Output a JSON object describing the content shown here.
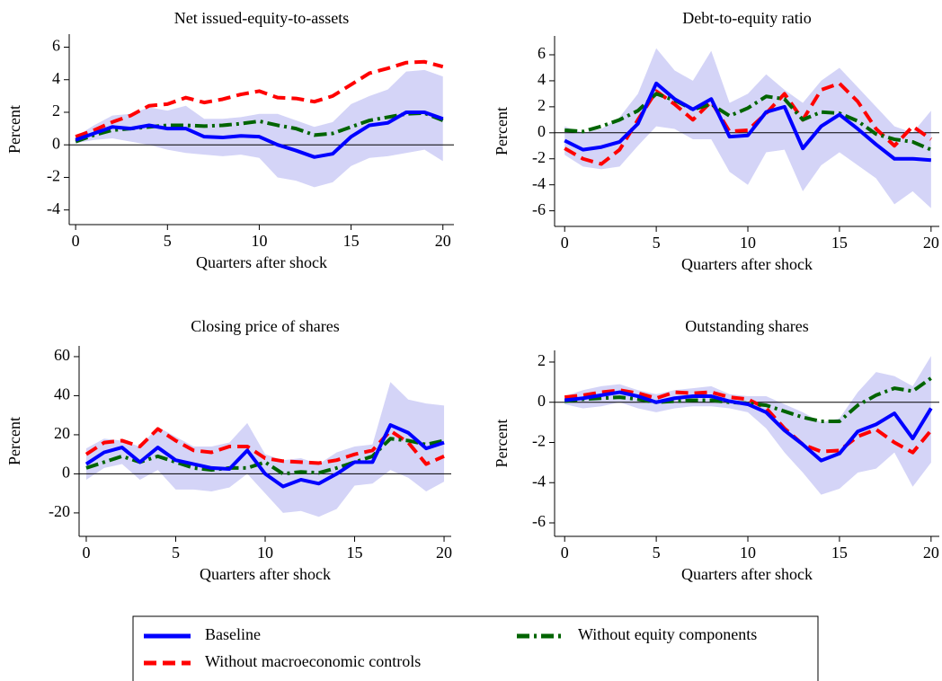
{
  "chart_data": [
    {
      "type": "line",
      "title": "Net issued-equity-to-assets",
      "xlabel": "Quarters after shock",
      "ylabel": "Percent",
      "x": [
        0,
        1,
        2,
        3,
        4,
        5,
        6,
        7,
        8,
        9,
        10,
        11,
        12,
        13,
        14,
        15,
        16,
        17,
        18,
        19,
        20
      ],
      "xlim": [
        -0.35,
        20.6
      ],
      "xticks": [
        0,
        5,
        10,
        15,
        20
      ],
      "ylim": [
        -4.9,
        6.8
      ],
      "yticks": [
        -4,
        -2,
        0,
        2,
        4,
        6
      ],
      "zero_line": true,
      "band": {
        "color": "#d4d4f7",
        "lower": [
          0.1,
          0.3,
          0.4,
          0.2,
          0.0,
          -0.3,
          -0.5,
          -0.6,
          -0.7,
          -0.6,
          -0.8,
          -2.0,
          -2.2,
          -2.6,
          -2.3,
          -1.3,
          -0.8,
          -0.7,
          -0.5,
          -0.3,
          -1.0
        ],
        "upper": [
          0.5,
          1.2,
          1.8,
          1.9,
          2.3,
          2.1,
          2.4,
          1.6,
          1.6,
          1.7,
          1.9,
          1.9,
          1.5,
          1.1,
          1.4,
          2.5,
          3.0,
          3.4,
          4.5,
          4.6,
          4.2
        ]
      },
      "series": [
        {
          "name": "Baseline",
          "color": "#0000ff",
          "style": "solid",
          "values": [
            0.3,
            0.7,
            1.1,
            1.0,
            1.2,
            1.0,
            1.0,
            0.5,
            0.45,
            0.55,
            0.5,
            0.0,
            -0.35,
            -0.75,
            -0.55,
            0.5,
            1.2,
            1.35,
            2.0,
            2.0,
            1.6
          ]
        },
        {
          "name": "Without macroeconomic controls",
          "color": "#ff0000",
          "style": "dashed",
          "values": [
            0.5,
            0.9,
            1.4,
            1.8,
            2.4,
            2.5,
            2.9,
            2.6,
            2.8,
            3.1,
            3.3,
            2.9,
            2.85,
            2.65,
            3.0,
            3.7,
            4.4,
            4.7,
            5.05,
            5.1,
            4.8
          ]
        },
        {
          "name": "Without equity components",
          "color": "#006400",
          "style": "dashdot",
          "values": [
            0.2,
            0.6,
            0.9,
            1.0,
            1.1,
            1.2,
            1.2,
            1.15,
            1.2,
            1.3,
            1.45,
            1.2,
            1.0,
            0.6,
            0.7,
            1.1,
            1.5,
            1.7,
            1.9,
            1.95,
            1.5
          ]
        }
      ]
    },
    {
      "type": "line",
      "title": "Debt-to-equity ratio",
      "xlabel": "Quarters after shock",
      "ylabel": "Percent",
      "x": [
        0,
        1,
        2,
        3,
        4,
        5,
        6,
        7,
        8,
        9,
        10,
        11,
        12,
        13,
        14,
        15,
        16,
        17,
        18,
        19,
        20
      ],
      "xlim": [
        -0.55,
        20.45
      ],
      "xticks": [
        0,
        5,
        10,
        15,
        20
      ],
      "ylim": [
        -7.2,
        7.45
      ],
      "yticks": [
        -6,
        -4,
        -2,
        0,
        2,
        4,
        6
      ],
      "zero_line": true,
      "band": {
        "color": "#d4d4f7",
        "lower": [
          -1.7,
          -2.6,
          -2.8,
          -2.6,
          -1.0,
          0.5,
          0.3,
          -0.5,
          -0.5,
          -3.0,
          -4.0,
          -1.5,
          -1.3,
          -4.5,
          -2.5,
          -1.5,
          -2.5,
          -3.5,
          -5.5,
          -4.5,
          -5.8
        ],
        "upper": [
          0.5,
          0.0,
          0.3,
          1.2,
          3.0,
          6.5,
          4.8,
          4.0,
          6.3,
          2.3,
          3.0,
          4.5,
          3.3,
          2.3,
          4.0,
          5.0,
          3.5,
          2.0,
          0.5,
          0.0,
          1.7
        ]
      },
      "series": [
        {
          "name": "Baseline",
          "color": "#0000ff",
          "style": "solid",
          "values": [
            -0.6,
            -1.3,
            -1.1,
            -0.7,
            0.7,
            3.8,
            2.6,
            1.8,
            2.6,
            -0.3,
            -0.2,
            1.6,
            2.0,
            -1.2,
            0.5,
            1.4,
            0.3,
            -0.9,
            -2.0,
            -2.0,
            -2.1
          ]
        },
        {
          "name": "Without macroeconomic controls",
          "color": "#ff0000",
          "style": "dashed",
          "values": [
            -1.2,
            -2.0,
            -2.4,
            -1.3,
            1.0,
            3.2,
            2.2,
            1.0,
            2.4,
            0.1,
            0.2,
            1.5,
            3.0,
            1.0,
            3.3,
            3.8,
            2.4,
            0.3,
            -1.0,
            0.5,
            -0.5
          ]
        },
        {
          "name": "Without equity components",
          "color": "#006400",
          "style": "dashdot",
          "values": [
            0.2,
            0.1,
            0.5,
            1.0,
            1.7,
            3.0,
            2.5,
            1.8,
            2.2,
            1.3,
            1.9,
            2.8,
            2.6,
            1.0,
            1.6,
            1.5,
            0.9,
            -0.1,
            -0.5,
            -0.7,
            -1.3
          ]
        }
      ]
    },
    {
      "type": "line",
      "title": "Closing price of shares",
      "xlabel": "Quarters after shock",
      "ylabel": "Percent",
      "x": [
        0,
        1,
        2,
        3,
        4,
        5,
        6,
        7,
        8,
        9,
        10,
        11,
        12,
        13,
        14,
        15,
        16,
        17,
        18,
        19,
        20
      ],
      "xlim": [
        -0.4,
        20.4
      ],
      "xticks": [
        0,
        5,
        10,
        15,
        20
      ],
      "ylim": [
        -32,
        65.5
      ],
      "yticks": [
        -20,
        0,
        20,
        40,
        60
      ],
      "zero_line": true,
      "band": {
        "color": "#d4d4f7",
        "lower": [
          -3,
          3,
          5,
          -3,
          2,
          -8,
          -8,
          -9,
          -7,
          0,
          -10,
          -20,
          -19,
          -22,
          -18,
          -6,
          -5,
          2,
          -2,
          -9,
          -4
        ],
        "upper": [
          13,
          18,
          17,
          14,
          24,
          19,
          14,
          14,
          16,
          26,
          10,
          7,
          8,
          5,
          11,
          14,
          15,
          47,
          38,
          36,
          35
        ]
      },
      "series": [
        {
          "name": "Baseline",
          "color": "#0000ff",
          "style": "solid",
          "values": [
            5,
            11,
            13.5,
            6,
            13.5,
            7,
            5,
            3,
            2.5,
            12,
            0,
            -6.5,
            -3,
            -5,
            0,
            6,
            6,
            25,
            21,
            13,
            16
          ]
        },
        {
          "name": "Without macroeconomic controls",
          "color": "#ff0000",
          "style": "dashed",
          "values": [
            10,
            16,
            17,
            14,
            23,
            17,
            12,
            11,
            14,
            14,
            8,
            6.5,
            6,
            5.5,
            7,
            10,
            12,
            22,
            16,
            5,
            9
          ]
        },
        {
          "name": "Without equity components",
          "color": "#006400",
          "style": "dashdot",
          "values": [
            3,
            6,
            9,
            6,
            9,
            6,
            3,
            2,
            3,
            3,
            6,
            0,
            1,
            0.5,
            3,
            6,
            9,
            18,
            17,
            15,
            17
          ]
        }
      ]
    },
    {
      "type": "line",
      "title": "Outstanding shares",
      "xlabel": "Quarters after shock",
      "ylabel": "Percent",
      "x": [
        0,
        1,
        2,
        3,
        4,
        5,
        6,
        7,
        8,
        9,
        10,
        11,
        12,
        13,
        14,
        15,
        16,
        17,
        18,
        19,
        20
      ],
      "xlim": [
        -0.55,
        20.45
      ],
      "xticks": [
        0,
        5,
        10,
        15,
        20
      ],
      "ylim": [
        -6.67,
        2.58
      ],
      "yticks": [
        -6,
        -4,
        -2,
        0,
        2
      ],
      "zero_line": true,
      "band": {
        "color": "#d4d4f7",
        "lower": [
          -0.1,
          -0.3,
          -0.2,
          0.0,
          -0.3,
          -0.5,
          -0.3,
          -0.2,
          -0.2,
          -0.3,
          -0.5,
          -1.3,
          -2.5,
          -3.5,
          -4.6,
          -4.3,
          -3.5,
          -3.3,
          -2.5,
          -4.2,
          -3.0
        ],
        "upper": [
          0.3,
          0.6,
          0.8,
          0.9,
          0.6,
          0.4,
          0.6,
          0.7,
          0.8,
          0.4,
          0.3,
          0.3,
          -0.1,
          -0.5,
          -1.0,
          -0.8,
          0.5,
          1.5,
          1.3,
          0.8,
          2.3
        ]
      },
      "series": [
        {
          "name": "Baseline",
          "color": "#0000ff",
          "style": "solid",
          "values": [
            0.1,
            0.2,
            0.35,
            0.5,
            0.3,
            0.0,
            0.2,
            0.3,
            0.3,
            0.05,
            -0.1,
            -0.5,
            -1.4,
            -2.1,
            -2.9,
            -2.55,
            -1.45,
            -1.1,
            -0.55,
            -1.8,
            -0.3
          ]
        },
        {
          "name": "Without macroeconomic controls",
          "color": "#ff0000",
          "style": "dashed",
          "values": [
            0.25,
            0.35,
            0.5,
            0.6,
            0.45,
            0.2,
            0.5,
            0.45,
            0.5,
            0.25,
            0.15,
            -0.3,
            -1.3,
            -2.1,
            -2.45,
            -2.4,
            -1.7,
            -1.35,
            -2.0,
            -2.5,
            -1.4
          ]
        },
        {
          "name": "Without equity components",
          "color": "#006400",
          "style": "dashdot",
          "values": [
            0.05,
            0.15,
            0.2,
            0.25,
            0.15,
            0.0,
            0.05,
            0.1,
            0.1,
            0.0,
            -0.05,
            -0.15,
            -0.45,
            -0.75,
            -0.95,
            -0.95,
            -0.15,
            0.35,
            0.7,
            0.55,
            1.2
          ]
        }
      ]
    }
  ]
}
